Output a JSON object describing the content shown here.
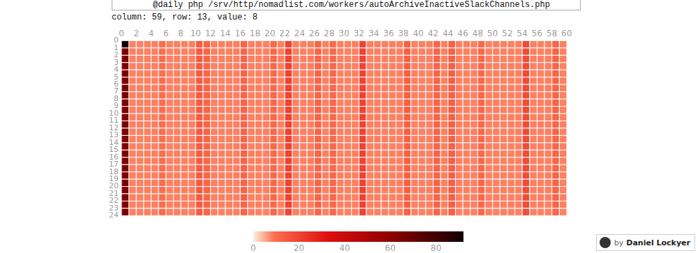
{
  "chart_data": {
    "type": "heatmap",
    "command": "@daily php /srv/http/nomadlist.com/workers/autoArchiveInactiveSlackChannels.php",
    "info": "column: 59, row: 13, value: 8",
    "xlim": [
      0,
      60
    ],
    "xticks": [
      0,
      2,
      4,
      6,
      8,
      10,
      12,
      14,
      16,
      18,
      20,
      22,
      24,
      26,
      28,
      30,
      32,
      34,
      36,
      38,
      40,
      42,
      44,
      46,
      48,
      50,
      52,
      54,
      56,
      58,
      60
    ],
    "ylim": [
      0,
      24
    ],
    "yticks": [
      0,
      1,
      2,
      3,
      4,
      5,
      6,
      7,
      8,
      9,
      10,
      11,
      12,
      13,
      14,
      15,
      16,
      17,
      18,
      19,
      20,
      21,
      22,
      23,
      24
    ],
    "grid": false,
    "cells": [
      [
        92,
        8,
        8,
        8,
        8,
        10,
        8,
        8,
        8,
        8,
        14,
        12,
        8,
        8,
        8,
        8,
        12,
        8,
        8,
        8,
        11,
        8,
        20,
        8,
        8,
        8,
        12,
        8,
        11,
        8,
        8,
        8,
        20,
        8,
        8,
        8,
        8,
        8,
        13,
        8,
        8,
        8,
        12,
        8,
        13,
        8,
        8,
        8,
        11,
        8,
        8,
        8,
        8,
        8,
        18,
        8,
        8,
        8,
        12,
        8
      ],
      [
        65,
        8,
        8,
        8,
        8,
        10,
        8,
        8,
        8,
        8,
        14,
        12,
        8,
        8,
        8,
        8,
        12,
        8,
        8,
        8,
        11,
        8,
        20,
        8,
        8,
        8,
        12,
        8,
        11,
        8,
        8,
        8,
        20,
        8,
        8,
        8,
        8,
        8,
        13,
        8,
        8,
        8,
        12,
        8,
        13,
        8,
        8,
        8,
        11,
        8,
        8,
        8,
        8,
        8,
        18,
        8,
        8,
        8,
        12,
        8
      ],
      [
        65,
        8,
        8,
        8,
        8,
        10,
        8,
        8,
        8,
        8,
        14,
        12,
        8,
        8,
        8,
        8,
        12,
        8,
        8,
        8,
        11,
        8,
        20,
        8,
        8,
        8,
        12,
        8,
        11,
        8,
        8,
        8,
        20,
        8,
        8,
        8,
        8,
        8,
        13,
        8,
        8,
        8,
        12,
        8,
        13,
        8,
        8,
        8,
        11,
        8,
        8,
        8,
        8,
        8,
        18,
        8,
        8,
        8,
        12,
        8
      ],
      [
        65,
        8,
        8,
        8,
        8,
        10,
        8,
        8,
        8,
        8,
        14,
        12,
        8,
        8,
        8,
        8,
        12,
        8,
        8,
        8,
        11,
        8,
        20,
        8,
        8,
        8,
        12,
        8,
        11,
        8,
        8,
        8,
        20,
        8,
        8,
        8,
        8,
        8,
        13,
        8,
        8,
        8,
        12,
        8,
        13,
        8,
        8,
        8,
        11,
        8,
        8,
        8,
        8,
        8,
        18,
        8,
        8,
        8,
        12,
        8
      ],
      [
        65,
        8,
        8,
        8,
        8,
        10,
        8,
        8,
        8,
        8,
        14,
        12,
        8,
        8,
        8,
        8,
        12,
        8,
        8,
        8,
        11,
        8,
        20,
        8,
        8,
        8,
        12,
        8,
        11,
        8,
        8,
        8,
        20,
        8,
        8,
        8,
        8,
        8,
        13,
        8,
        8,
        8,
        12,
        8,
        13,
        8,
        8,
        8,
        11,
        8,
        8,
        8,
        8,
        8,
        18,
        8,
        8,
        8,
        12,
        8
      ],
      [
        65,
        8,
        8,
        8,
        8,
        10,
        8,
        8,
        8,
        8,
        14,
        12,
        8,
        8,
        8,
        8,
        12,
        8,
        8,
        8,
        11,
        8,
        20,
        8,
        8,
        8,
        12,
        8,
        11,
        8,
        8,
        8,
        20,
        8,
        8,
        8,
        8,
        8,
        13,
        8,
        8,
        8,
        12,
        8,
        13,
        8,
        8,
        8,
        11,
        8,
        8,
        8,
        8,
        8,
        18,
        8,
        8,
        8,
        12,
        8
      ],
      [
        65,
        8,
        8,
        8,
        8,
        10,
        8,
        8,
        8,
        8,
        14,
        12,
        8,
        8,
        8,
        8,
        12,
        8,
        8,
        8,
        11,
        8,
        20,
        8,
        8,
        8,
        12,
        8,
        11,
        8,
        8,
        8,
        20,
        8,
        8,
        8,
        8,
        8,
        13,
        8,
        8,
        8,
        12,
        8,
        13,
        8,
        8,
        8,
        11,
        8,
        8,
        8,
        8,
        8,
        18,
        8,
        8,
        8,
        12,
        8
      ],
      [
        65,
        8,
        8,
        8,
        8,
        10,
        8,
        8,
        8,
        8,
        14,
        12,
        8,
        8,
        8,
        8,
        12,
        8,
        8,
        8,
        11,
        8,
        20,
        8,
        8,
        8,
        12,
        8,
        11,
        8,
        8,
        8,
        20,
        8,
        8,
        8,
        8,
        8,
        13,
        8,
        8,
        8,
        12,
        8,
        13,
        8,
        8,
        8,
        11,
        8,
        8,
        8,
        8,
        8,
        18,
        8,
        8,
        8,
        12,
        8
      ],
      [
        65,
        8,
        8,
        8,
        8,
        10,
        8,
        8,
        8,
        8,
        14,
        12,
        8,
        8,
        8,
        8,
        12,
        8,
        8,
        8,
        11,
        8,
        20,
        8,
        8,
        8,
        12,
        8,
        11,
        8,
        8,
        8,
        20,
        8,
        8,
        8,
        8,
        8,
        13,
        8,
        8,
        8,
        12,
        8,
        13,
        8,
        8,
        8,
        11,
        8,
        8,
        8,
        8,
        8,
        18,
        8,
        8,
        8,
        12,
        8
      ],
      [
        65,
        8,
        8,
        8,
        8,
        10,
        8,
        8,
        8,
        8,
        14,
        12,
        8,
        8,
        8,
        8,
        12,
        8,
        8,
        8,
        11,
        8,
        20,
        8,
        8,
        8,
        12,
        8,
        11,
        8,
        8,
        8,
        20,
        8,
        8,
        8,
        8,
        8,
        13,
        8,
        8,
        8,
        12,
        8,
        13,
        8,
        8,
        8,
        11,
        8,
        8,
        8,
        8,
        8,
        18,
        8,
        8,
        8,
        12,
        8
      ],
      [
        65,
        8,
        8,
        8,
        8,
        10,
        8,
        8,
        8,
        8,
        14,
        12,
        8,
        8,
        8,
        8,
        12,
        8,
        8,
        8,
        11,
        8,
        20,
        8,
        8,
        8,
        12,
        8,
        11,
        8,
        8,
        8,
        20,
        8,
        8,
        8,
        8,
        8,
        13,
        8,
        8,
        8,
        12,
        8,
        13,
        8,
        8,
        8,
        11,
        8,
        8,
        8,
        8,
        8,
        18,
        8,
        8,
        8,
        12,
        8
      ],
      [
        65,
        8,
        8,
        8,
        8,
        10,
        8,
        8,
        8,
        8,
        14,
        12,
        8,
        8,
        8,
        8,
        12,
        8,
        8,
        8,
        11,
        8,
        20,
        8,
        8,
        8,
        12,
        8,
        11,
        8,
        8,
        8,
        20,
        8,
        8,
        8,
        8,
        8,
        13,
        8,
        8,
        8,
        12,
        8,
        13,
        8,
        8,
        8,
        11,
        8,
        8,
        8,
        8,
        8,
        18,
        8,
        8,
        8,
        12,
        8
      ],
      [
        65,
        8,
        8,
        8,
        8,
        10,
        8,
        8,
        8,
        8,
        14,
        12,
        8,
        8,
        8,
        8,
        12,
        8,
        8,
        8,
        11,
        8,
        20,
        8,
        8,
        8,
        12,
        8,
        11,
        8,
        8,
        8,
        20,
        8,
        8,
        8,
        8,
        8,
        13,
        8,
        8,
        8,
        12,
        8,
        13,
        8,
        8,
        8,
        11,
        8,
        8,
        8,
        8,
        8,
        18,
        8,
        8,
        8,
        12,
        8
      ],
      [
        65,
        8,
        8,
        8,
        8,
        10,
        8,
        8,
        8,
        8,
        14,
        12,
        8,
        8,
        8,
        8,
        12,
        8,
        8,
        8,
        11,
        8,
        20,
        8,
        8,
        8,
        12,
        8,
        11,
        8,
        8,
        8,
        20,
        8,
        8,
        8,
        8,
        8,
        13,
        8,
        8,
        8,
        12,
        8,
        13,
        8,
        8,
        8,
        11,
        8,
        8,
        8,
        8,
        8,
        18,
        8,
        8,
        8,
        12,
        8
      ],
      [
        65,
        8,
        8,
        8,
        8,
        10,
        8,
        8,
        8,
        8,
        14,
        12,
        8,
        8,
        8,
        8,
        12,
        8,
        8,
        8,
        11,
        8,
        20,
        8,
        8,
        8,
        12,
        8,
        11,
        8,
        8,
        8,
        20,
        8,
        8,
        8,
        8,
        8,
        13,
        8,
        8,
        8,
        12,
        8,
        13,
        8,
        8,
        8,
        11,
        8,
        8,
        8,
        8,
        8,
        18,
        8,
        8,
        8,
        12,
        8
      ],
      [
        65,
        8,
        8,
        8,
        8,
        10,
        8,
        8,
        8,
        8,
        14,
        12,
        8,
        8,
        8,
        8,
        12,
        8,
        8,
        8,
        11,
        8,
        20,
        8,
        8,
        8,
        12,
        8,
        11,
        8,
        8,
        8,
        20,
        8,
        8,
        8,
        8,
        8,
        13,
        8,
        8,
        8,
        12,
        8,
        13,
        8,
        8,
        8,
        11,
        8,
        8,
        8,
        8,
        8,
        18,
        8,
        8,
        8,
        12,
        8
      ],
      [
        65,
        8,
        8,
        8,
        8,
        10,
        8,
        8,
        8,
        8,
        14,
        12,
        8,
        8,
        8,
        8,
        12,
        8,
        8,
        8,
        11,
        8,
        20,
        8,
        8,
        8,
        12,
        8,
        11,
        8,
        8,
        8,
        20,
        8,
        8,
        8,
        8,
        8,
        13,
        8,
        8,
        8,
        12,
        8,
        13,
        8,
        8,
        8,
        11,
        8,
        8,
        8,
        8,
        8,
        18,
        8,
        8,
        8,
        12,
        8
      ],
      [
        65,
        8,
        8,
        8,
        8,
        10,
        8,
        8,
        8,
        8,
        14,
        12,
        8,
        8,
        8,
        8,
        12,
        8,
        8,
        8,
        11,
        8,
        20,
        8,
        8,
        8,
        12,
        8,
        11,
        8,
        8,
        8,
        20,
        8,
        8,
        8,
        8,
        8,
        13,
        8,
        8,
        8,
        12,
        8,
        13,
        8,
        8,
        8,
        11,
        8,
        8,
        8,
        8,
        8,
        18,
        8,
        8,
        8,
        12,
        8
      ],
      [
        65,
        8,
        8,
        8,
        8,
        10,
        8,
        8,
        8,
        8,
        14,
        12,
        8,
        8,
        8,
        8,
        12,
        8,
        8,
        8,
        11,
        8,
        20,
        8,
        8,
        8,
        12,
        8,
        11,
        8,
        8,
        8,
        20,
        8,
        8,
        8,
        8,
        8,
        13,
        8,
        8,
        8,
        12,
        8,
        13,
        8,
        8,
        8,
        11,
        8,
        8,
        8,
        8,
        8,
        18,
        8,
        8,
        8,
        12,
        8
      ],
      [
        65,
        8,
        8,
        8,
        8,
        10,
        8,
        8,
        8,
        8,
        14,
        12,
        8,
        8,
        8,
        8,
        12,
        8,
        8,
        8,
        11,
        8,
        20,
        8,
        8,
        8,
        12,
        8,
        11,
        8,
        8,
        8,
        20,
        8,
        8,
        8,
        8,
        8,
        13,
        8,
        8,
        8,
        12,
        8,
        13,
        8,
        8,
        8,
        11,
        8,
        8,
        8,
        8,
        8,
        18,
        8,
        8,
        8,
        12,
        8
      ],
      [
        65,
        8,
        8,
        8,
        8,
        10,
        8,
        8,
        8,
        8,
        14,
        12,
        8,
        8,
        8,
        8,
        12,
        8,
        8,
        8,
        11,
        8,
        20,
        8,
        8,
        8,
        12,
        8,
        11,
        8,
        8,
        8,
        20,
        8,
        8,
        8,
        8,
        8,
        13,
        8,
        8,
        8,
        12,
        8,
        13,
        8,
        8,
        8,
        11,
        8,
        8,
        8,
        8,
        8,
        18,
        8,
        8,
        8,
        12,
        8
      ],
      [
        65,
        8,
        8,
        8,
        8,
        10,
        8,
        8,
        8,
        8,
        14,
        12,
        8,
        8,
        8,
        8,
        12,
        8,
        8,
        8,
        11,
        8,
        20,
        8,
        8,
        8,
        12,
        8,
        11,
        8,
        8,
        8,
        20,
        8,
        8,
        8,
        8,
        8,
        13,
        8,
        8,
        8,
        12,
        8,
        13,
        8,
        8,
        8,
        11,
        8,
        8,
        8,
        8,
        8,
        18,
        8,
        8,
        8,
        12,
        8
      ],
      [
        65,
        8,
        8,
        8,
        8,
        10,
        8,
        8,
        8,
        8,
        14,
        12,
        8,
        8,
        8,
        8,
        12,
        8,
        8,
        8,
        11,
        8,
        20,
        8,
        8,
        8,
        12,
        8,
        11,
        8,
        8,
        8,
        20,
        8,
        8,
        8,
        8,
        8,
        13,
        8,
        8,
        8,
        12,
        8,
        13,
        8,
        8,
        8,
        11,
        8,
        8,
        8,
        8,
        8,
        18,
        8,
        8,
        8,
        12,
        8
      ],
      [
        65,
        8,
        8,
        8,
        8,
        10,
        8,
        8,
        8,
        8,
        14,
        12,
        8,
        8,
        8,
        8,
        12,
        8,
        8,
        8,
        11,
        8,
        20,
        8,
        8,
        8,
        12,
        8,
        11,
        8,
        8,
        8,
        20,
        8,
        8,
        8,
        8,
        8,
        13,
        8,
        8,
        8,
        12,
        8,
        13,
        8,
        8,
        8,
        11,
        8,
        8,
        8,
        8,
        8,
        18,
        8,
        8,
        8,
        12,
        8
      ]
    ],
    "color_range": [
      0,
      92
    ],
    "color_ticks": [
      0,
      20,
      40,
      60,
      80
    ],
    "credit_prefix": "by",
    "credit_name": "Daniel Lockyer"
  }
}
